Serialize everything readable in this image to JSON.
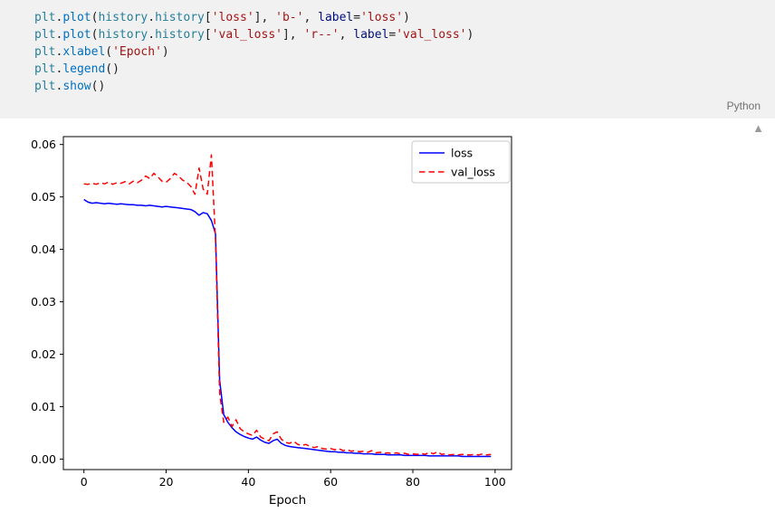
{
  "code_cell": {
    "language_badge": "Python",
    "token_colors": {
      "mod": "#267f99",
      "fn": "#0070c1",
      "str": "#a31515",
      "pun": "#1e1e1e",
      "kw": "#001080"
    },
    "lines": [
      [
        {
          "t": "plt",
          "c": "mod"
        },
        {
          "t": ".",
          "c": "pun"
        },
        {
          "t": "plot",
          "c": "fn"
        },
        {
          "t": "(",
          "c": "pun"
        },
        {
          "t": "history",
          "c": "mod"
        },
        {
          "t": ".",
          "c": "pun"
        },
        {
          "t": "history",
          "c": "mod"
        },
        {
          "t": "[",
          "c": "pun"
        },
        {
          "t": "'loss'",
          "c": "str"
        },
        {
          "t": "], ",
          "c": "pun"
        },
        {
          "t": "'b-'",
          "c": "str"
        },
        {
          "t": ", ",
          "c": "pun"
        },
        {
          "t": "label",
          "c": "kw"
        },
        {
          "t": "=",
          "c": "pun"
        },
        {
          "t": "'loss'",
          "c": "str"
        },
        {
          "t": ")",
          "c": "pun"
        }
      ],
      [
        {
          "t": "plt",
          "c": "mod"
        },
        {
          "t": ".",
          "c": "pun"
        },
        {
          "t": "plot",
          "c": "fn"
        },
        {
          "t": "(",
          "c": "pun"
        },
        {
          "t": "history",
          "c": "mod"
        },
        {
          "t": ".",
          "c": "pun"
        },
        {
          "t": "history",
          "c": "mod"
        },
        {
          "t": "[",
          "c": "pun"
        },
        {
          "t": "'val_loss'",
          "c": "str"
        },
        {
          "t": "], ",
          "c": "pun"
        },
        {
          "t": "'r--'",
          "c": "str"
        },
        {
          "t": ", ",
          "c": "pun"
        },
        {
          "t": "label",
          "c": "kw"
        },
        {
          "t": "=",
          "c": "pun"
        },
        {
          "t": "'val_loss'",
          "c": "str"
        },
        {
          "t": ")",
          "c": "pun"
        }
      ],
      [
        {
          "t": "plt",
          "c": "mod"
        },
        {
          "t": ".",
          "c": "pun"
        },
        {
          "t": "xlabel",
          "c": "fn"
        },
        {
          "t": "(",
          "c": "pun"
        },
        {
          "t": "'Epoch'",
          "c": "str"
        },
        {
          "t": ")",
          "c": "pun"
        }
      ],
      [
        {
          "t": "plt",
          "c": "mod"
        },
        {
          "t": ".",
          "c": "pun"
        },
        {
          "t": "legend",
          "c": "fn"
        },
        {
          "t": "()",
          "c": "pun"
        }
      ],
      [
        {
          "t": "plt",
          "c": "mod"
        },
        {
          "t": ".",
          "c": "pun"
        },
        {
          "t": "show",
          "c": "fn"
        },
        {
          "t": "()",
          "c": "pun"
        }
      ]
    ]
  },
  "output": {
    "collapse_icon": "▲"
  },
  "chart_data": {
    "type": "line",
    "title": "",
    "xlabel": "Epoch",
    "ylabel": "",
    "xlim": [
      -5,
      104
    ],
    "ylim": [
      -0.002,
      0.0615
    ],
    "xticks": [
      0,
      20,
      40,
      60,
      80,
      100
    ],
    "yticks": [
      0,
      0.01,
      0.02,
      0.03,
      0.04,
      0.05,
      0.06
    ],
    "grid": false,
    "legend_position": "upper right",
    "series": [
      {
        "name": "loss",
        "color": "#0000ff",
        "style": "solid",
        "values": [
          0.0495,
          0.049,
          0.0488,
          0.0489,
          0.0488,
          0.0487,
          0.0488,
          0.0487,
          0.0486,
          0.0487,
          0.0486,
          0.0485,
          0.0485,
          0.0484,
          0.0484,
          0.0483,
          0.0484,
          0.0483,
          0.0482,
          0.0481,
          0.0482,
          0.0481,
          0.048,
          0.0479,
          0.0478,
          0.0477,
          0.0476,
          0.0472,
          0.0465,
          0.047,
          0.0468,
          0.0455,
          0.043,
          0.015,
          0.0085,
          0.007,
          0.006,
          0.0052,
          0.0047,
          0.0043,
          0.004,
          0.0038,
          0.0042,
          0.0036,
          0.0032,
          0.003,
          0.0035,
          0.0038,
          0.003,
          0.0026,
          0.0024,
          0.0023,
          0.0022,
          0.0021,
          0.002,
          0.0019,
          0.0018,
          0.0017,
          0.0016,
          0.0015,
          0.0014,
          0.0014,
          0.0013,
          0.0013,
          0.0012,
          0.0012,
          0.0011,
          0.0011,
          0.001,
          0.001,
          0.001,
          0.0009,
          0.0009,
          0.0009,
          0.0008,
          0.0008,
          0.0008,
          0.0008,
          0.0007,
          0.0007,
          0.0007,
          0.0007,
          0.0007,
          0.0007,
          0.0006,
          0.0006,
          0.0006,
          0.0006,
          0.0006,
          0.0006,
          0.0006,
          0.0006,
          0.0005,
          0.0005,
          0.0005,
          0.0005,
          0.0005,
          0.0005,
          0.0005,
          0.0005
        ]
      },
      {
        "name": "val_loss",
        "color": "#ff0000",
        "style": "dashed",
        "values": [
          0.0525,
          0.0524,
          0.0526,
          0.0524,
          0.0527,
          0.0525,
          0.0528,
          0.0524,
          0.0527,
          0.0526,
          0.0529,
          0.0525,
          0.053,
          0.0527,
          0.0532,
          0.054,
          0.0535,
          0.0545,
          0.0538,
          0.053,
          0.0528,
          0.0535,
          0.0545,
          0.054,
          0.0532,
          0.0528,
          0.052,
          0.0505,
          0.0555,
          0.0515,
          0.0505,
          0.058,
          0.042,
          0.0125,
          0.007,
          0.008,
          0.0062,
          0.0075,
          0.0058,
          0.0052,
          0.0048,
          0.0045,
          0.0055,
          0.0042,
          0.0038,
          0.0035,
          0.0048,
          0.0052,
          0.0038,
          0.0032,
          0.003,
          0.0034,
          0.0028,
          0.0026,
          0.0028,
          0.0024,
          0.0022,
          0.0024,
          0.002,
          0.0019,
          0.002,
          0.0018,
          0.002,
          0.0016,
          0.0018,
          0.0015,
          0.0016,
          0.0014,
          0.0015,
          0.0013,
          0.0016,
          0.0012,
          0.0013,
          0.0011,
          0.0012,
          0.001,
          0.0012,
          0.001,
          0.0011,
          0.0009,
          0.001,
          0.0009,
          0.0011,
          0.0009,
          0.0013,
          0.001,
          0.0014,
          0.0009,
          0.001,
          0.0008,
          0.0009,
          0.0008,
          0.0009,
          0.0008,
          0.0008,
          0.0009,
          0.0008,
          0.001,
          0.0008,
          0.0009
        ]
      }
    ]
  }
}
